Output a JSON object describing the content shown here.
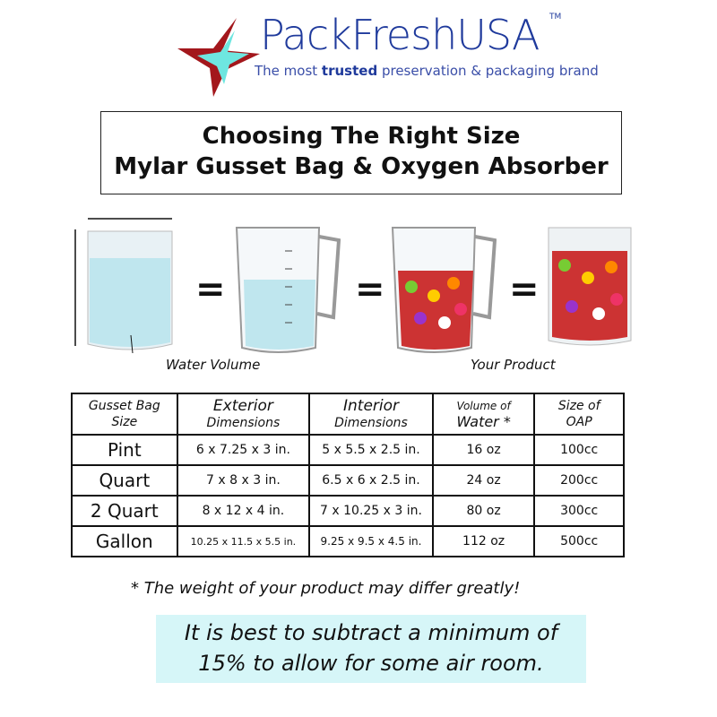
{
  "logo": {
    "brand": "PackFreshUSA",
    "tm": "TM",
    "tagline_pre": "The most ",
    "tagline_bold": "trusted",
    "tagline_post": " preservation & packaging brand",
    "colors": {
      "star_outer": "#a3171c",
      "star_inner": "#6ee6e0",
      "text": "#1f3a9c"
    }
  },
  "title": {
    "line1": "Choosing The Right Size",
    "line2": "Mylar Gusset Bag & Oxygen Absorber"
  },
  "illustration": {
    "equals": "=",
    "caption_left": "Water Volume",
    "caption_right": "Your Product"
  },
  "table": {
    "headers": [
      {
        "line1": "Gusset Bag",
        "line2": "Size"
      },
      {
        "line1": "Exterior",
        "line2": "Dimensions"
      },
      {
        "line1": "Interior",
        "line2": "Dimensions"
      },
      {
        "line1": "Volume of",
        "line2": "Water *"
      },
      {
        "line1": "Size of",
        "line2": "OAP"
      }
    ],
    "rows": [
      [
        "Pint",
        "6 x 7.25 x 3 in.",
        "5 x 5.5 x 2.5 in.",
        "16 oz",
        "100cc"
      ],
      [
        "Quart",
        "7 x 8 x 3 in.",
        "6.5 x 6 x 2.5 in.",
        "24 oz",
        "200cc"
      ],
      [
        "2 Quart",
        "8 x 12 x 4 in.",
        "7 x 10.25 x 3 in.",
        "80 oz",
        "300cc"
      ],
      [
        "Gallon",
        "10.25 x 11.5 x 5.5 in.",
        "9.25 x 9.5 x 4.5 in.",
        "112 oz",
        "500cc"
      ]
    ]
  },
  "note": "* The weight of your product may differ greatly!",
  "tip": {
    "line1": "It is best to subtract a minimum of",
    "line2": "15% to allow for some air  room.",
    "background": "#d6f6f8"
  }
}
